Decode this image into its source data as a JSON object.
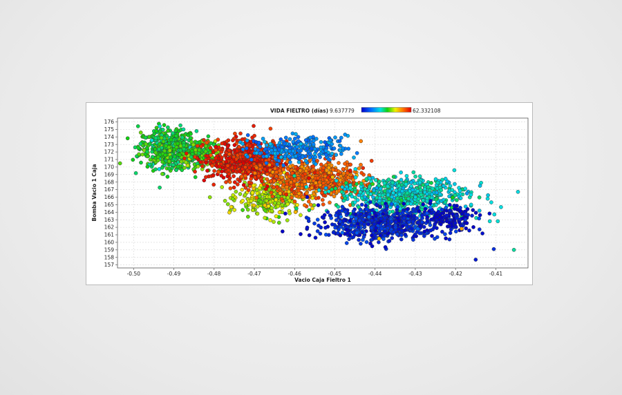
{
  "chart_data": {
    "type": "scatter",
    "title": "",
    "xlabel": "Vacio Caja Fieltro 1",
    "ylabel": "Bomba Vacio 1 Caja",
    "xlim": [
      -0.504,
      -0.402
    ],
    "ylim": [
      156.6,
      176.5
    ],
    "x_ticks": [
      -0.5,
      -0.49,
      -0.48,
      -0.47,
      -0.46,
      -0.45,
      -0.44,
      -0.43,
      -0.42,
      -0.41
    ],
    "x_tick_labels": [
      "-0.50",
      "-0.49",
      "-0.48",
      "-0.47",
      "-0.46",
      "-0.45",
      "-0.44",
      "-0.43",
      "-0.42",
      "-0.41"
    ],
    "y_ticks": [
      157,
      158,
      159,
      160,
      161,
      162,
      163,
      164,
      165,
      166,
      167,
      168,
      169,
      170,
      171,
      172,
      173,
      174,
      175,
      176
    ],
    "y_tick_labels": [
      "157",
      "158",
      "159",
      "160",
      "161",
      "162",
      "163",
      "164",
      "165",
      "166",
      "167",
      "168",
      "169",
      "170",
      "171",
      "172",
      "173",
      "174",
      "175",
      "176"
    ],
    "grid": true,
    "colorbar": {
      "title": "VIDA FIELTRO (días)",
      "min_label": "9.637779",
      "max_label": "62.332108",
      "min": 9.637779,
      "max": 62.332108,
      "placement": "top-center"
    },
    "clusters": [
      {
        "name_hint": "yellow-green",
        "color_value": 36,
        "center": [
          -0.4915,
          172.5
        ],
        "spread": [
          0.0035,
          1.3
        ],
        "approx_points": 520
      },
      {
        "name_hint": "light-green",
        "color_value": 38,
        "center": [
          -0.4835,
          171.8
        ],
        "spread": [
          0.0025,
          1.0
        ],
        "approx_points": 180
      },
      {
        "name_hint": "yellow-lower",
        "color_value": 43,
        "center": [
          -0.466,
          165.8
        ],
        "spread": [
          0.004,
          1.2
        ],
        "approx_points": 300
      },
      {
        "name_hint": "dark-red",
        "color_value": 60,
        "center": [
          -0.472,
          170.8
        ],
        "spread": [
          0.005,
          1.3
        ],
        "approx_points": 650
      },
      {
        "name_hint": "orange-red",
        "color_value": 55,
        "center": [
          -0.455,
          168.3
        ],
        "spread": [
          0.006,
          1.2
        ],
        "approx_points": 650
      },
      {
        "name_hint": "teal",
        "color_value": 22,
        "center": [
          -0.459,
          172.4
        ],
        "spread": [
          0.006,
          0.8
        ],
        "approx_points": 260
      },
      {
        "name_hint": "green",
        "color_value": 30,
        "center": [
          -0.433,
          166.3
        ],
        "spread": [
          0.008,
          1.2
        ],
        "approx_points": 650
      },
      {
        "name_hint": "blue",
        "color_value": 13,
        "center": [
          -0.438,
          162.5
        ],
        "spread": [
          0.008,
          1.1
        ],
        "approx_points": 650
      },
      {
        "name_hint": "dark-blue",
        "color_value": 10,
        "center": [
          -0.421,
          163.3
        ],
        "spread": [
          0.003,
          0.7
        ],
        "approx_points": 120
      }
    ],
    "outliers": [
      {
        "x": -0.4115,
        "y": 162.8,
        "color_value": 30
      },
      {
        "x": -0.4095,
        "y": 162.8,
        "color_value": 30
      },
      {
        "x": -0.4055,
        "y": 159.0,
        "color_value": 32
      },
      {
        "x": -0.4105,
        "y": 159.1,
        "color_value": 14
      },
      {
        "x": -0.415,
        "y": 157.7,
        "color_value": 12
      },
      {
        "x": -0.4215,
        "y": 160.4,
        "color_value": 13
      },
      {
        "x": -0.4185,
        "y": 161.8,
        "color_value": 50
      },
      {
        "x": -0.439,
        "y": 160.5,
        "color_value": 48
      }
    ],
    "colors": {
      "marker_stroke": "#333333",
      "grid": "#d6d6d6",
      "plot_border": "#555555"
    }
  }
}
